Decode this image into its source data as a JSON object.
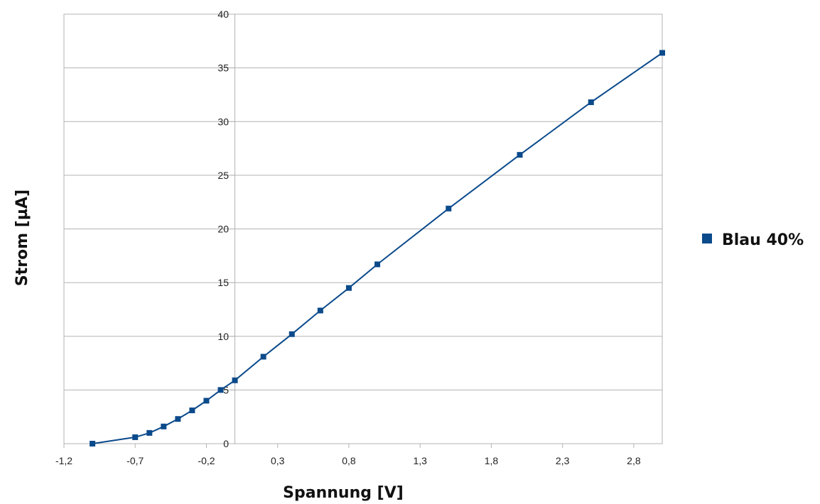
{
  "chart_data": {
    "type": "line",
    "title": "",
    "xlabel": "Spannung [V]",
    "ylabel": "Strom [µA]",
    "xlim": [
      -1.2,
      3.0
    ],
    "ylim": [
      0,
      40
    ],
    "x_ticks": [
      -1.2,
      -0.7,
      -0.2,
      0.3,
      0.8,
      1.3,
      1.8,
      2.3,
      2.8
    ],
    "x_tick_labels": [
      "-1,2",
      "-0,7",
      "-0,2",
      "0,3",
      "0,8",
      "1,3",
      "1,8",
      "2,3",
      "2,8"
    ],
    "y_ticks": [
      0,
      5,
      10,
      15,
      20,
      25,
      30,
      35,
      40
    ],
    "y_tick_labels": [
      "0",
      "5",
      "10",
      "15",
      "20",
      "25",
      "30",
      "35",
      "40"
    ],
    "grid": "horizontal",
    "legend_position": "right",
    "series": [
      {
        "name": "Blau 40%",
        "color": "#0b4a8b",
        "marker": "square",
        "x": [
          -1.0,
          -0.7,
          -0.6,
          -0.5,
          -0.4,
          -0.3,
          -0.2,
          -0.1,
          0.0,
          0.2,
          0.4,
          0.6,
          0.8,
          1.0,
          1.5,
          2.0,
          2.5,
          3.0
        ],
        "y": [
          0.0,
          0.6,
          1.0,
          1.6,
          2.3,
          3.1,
          4.0,
          5.0,
          5.9,
          8.1,
          10.2,
          12.4,
          14.5,
          16.7,
          21.9,
          26.9,
          31.8,
          36.4
        ]
      }
    ]
  }
}
